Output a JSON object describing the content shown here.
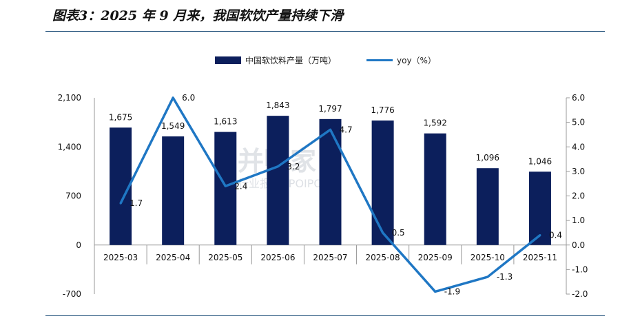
{
  "title": "图表3：2025 年 9 月来，我国软饮产量持续下滑",
  "watermark": {
    "main": "并购家",
    "sub": "行业报告 IPOIPO.CN"
  },
  "chart_data": {
    "type": "bar",
    "categories": [
      "2025-03",
      "2025-04",
      "2025-05",
      "2025-06",
      "2025-07",
      "2025-08",
      "2025-09",
      "2025-10",
      "2025-11"
    ],
    "series": [
      {
        "name": "中国软饮料产量（万吨）",
        "type": "bar",
        "axis": "left",
        "color": "#0c1f5c",
        "values": [
          1675,
          1549,
          1613,
          1843,
          1797,
          1776,
          1592,
          1096,
          1046
        ],
        "labels": [
          "1,675",
          "1,549",
          "1,613",
          "1,843",
          "1,797",
          "1,776",
          "1,592",
          "1,096",
          "1,046"
        ]
      },
      {
        "name": "yoy（%）",
        "type": "line",
        "axis": "right",
        "color": "#1f77c4",
        "values": [
          1.7,
          6.0,
          2.4,
          3.2,
          4.7,
          0.5,
          -1.9,
          -1.3,
          0.4
        ],
        "labels": [
          "1.7",
          "6.0",
          "2.4",
          "3.2",
          "4.7",
          "0.5",
          "-1.9",
          "-1.3",
          "0.4"
        ]
      }
    ],
    "left_axis": {
      "ylim": [
        -700,
        2100
      ],
      "ticks": [
        -700,
        0,
        700,
        1400,
        2100
      ],
      "tick_labels": [
        "-700",
        "0",
        "700",
        "1,400",
        "2,100"
      ]
    },
    "right_axis": {
      "ylim": [
        -2.0,
        6.0
      ],
      "ticks": [
        -2.0,
        -1.0,
        0.0,
        1.0,
        2.0,
        3.0,
        4.0,
        5.0,
        6.0
      ],
      "tick_labels": [
        "-2.0",
        "-1.0",
        "0.0",
        "1.0",
        "2.0",
        "3.0",
        "4.0",
        "5.0",
        "6.0"
      ]
    },
    "legend_position": "top-center",
    "grid": false
  }
}
